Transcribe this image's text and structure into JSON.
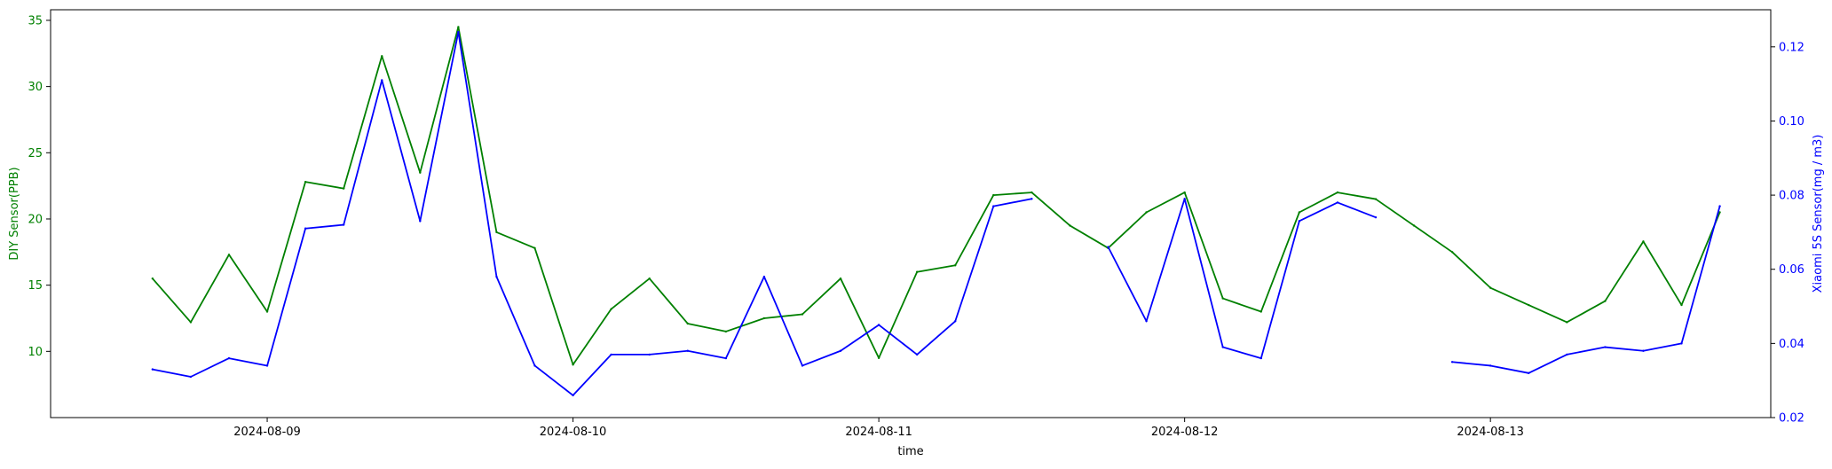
{
  "chart_data": {
    "type": "line",
    "xlabel": "time",
    "y_left_label": "DIY Sensor(PPB)",
    "y_right_label": "Xiaomi 5S Sensor(mg / m3)",
    "x_range": [
      "2024-08-08 07:00",
      "2024-08-13 22:00"
    ],
    "x_ticks": [
      "2024-08-09",
      "2024-08-10",
      "2024-08-11",
      "2024-08-12",
      "2024-08-13"
    ],
    "y_left_range": [
      5.0,
      35.8
    ],
    "y_left_ticks": [
      10,
      15,
      20,
      25,
      30,
      35
    ],
    "y_right_range": [
      0.02,
      0.13
    ],
    "y_right_ticks": [
      0.02,
      0.04,
      0.06,
      0.08,
      0.1,
      0.12
    ],
    "grid": false,
    "colors": {
      "left_axis": "#008000",
      "right_axis": "#0000ff",
      "diy_series": "#008000",
      "xiaomi_series": "#0000ff"
    },
    "series": [
      {
        "axis": "left",
        "x": [
          "2024-08-08 15:00",
          "2024-08-08 18:00",
          "2024-08-08 21:00",
          "2024-08-09 00:00",
          "2024-08-09 03:00",
          "2024-08-09 06:00",
          "2024-08-09 09:00",
          "2024-08-09 12:00",
          "2024-08-09 15:00",
          "2024-08-09 18:00",
          "2024-08-09 21:00",
          "2024-08-10 00:00",
          "2024-08-10 03:00",
          "2024-08-10 06:00",
          "2024-08-10 09:00",
          "2024-08-10 12:00",
          "2024-08-10 15:00",
          "2024-08-10 18:00",
          "2024-08-10 21:00",
          "2024-08-11 00:00",
          "2024-08-11 03:00",
          "2024-08-11 06:00",
          "2024-08-11 09:00",
          "2024-08-11 12:00",
          "2024-08-11 15:00",
          "2024-08-11 18:00",
          "2024-08-11 21:00",
          "2024-08-12 00:00",
          "2024-08-12 03:00",
          "2024-08-12 06:00",
          "2024-08-12 09:00",
          "2024-08-12 12:00",
          "2024-08-12 15:00",
          "2024-08-12 18:00",
          "2024-08-12 21:00",
          "2024-08-13 00:00",
          "2024-08-13 03:00",
          "2024-08-13 06:00",
          "2024-08-13 09:00",
          "2024-08-13 12:00",
          "2024-08-13 15:00",
          "2024-08-13 18:00"
        ],
        "values": [
          15.5,
          12.2,
          17.3,
          13.0,
          22.8,
          22.3,
          32.3,
          23.5,
          34.5,
          19.0,
          17.8,
          9.0,
          13.2,
          15.5,
          12.1,
          11.5,
          12.5,
          12.8,
          15.5,
          9.5,
          16.0,
          16.5,
          21.8,
          22.0,
          19.5,
          17.8,
          20.5,
          22.0,
          14.0,
          13.0,
          20.5,
          22.0,
          21.5,
          19.5,
          17.5,
          14.8,
          13.5,
          12.2,
          13.8,
          18.3,
          13.5,
          20.5
        ]
      },
      {
        "axis": "right",
        "x": [
          "2024-08-08 15:00",
          "2024-08-08 18:00",
          "2024-08-08 21:00",
          "2024-08-09 00:00",
          "2024-08-09 03:00",
          "2024-08-09 06:00",
          "2024-08-09 09:00",
          "2024-08-09 12:00",
          "2024-08-09 15:00",
          "2024-08-09 18:00",
          "2024-08-09 21:00",
          "2024-08-10 00:00",
          "2024-08-10 03:00",
          "2024-08-10 06:00",
          "2024-08-10 09:00",
          "2024-08-10 12:00",
          "2024-08-10 15:00",
          "2024-08-10 18:00",
          "2024-08-10 21:00",
          "2024-08-11 00:00",
          "2024-08-11 03:00",
          "2024-08-11 06:00",
          "2024-08-11 09:00",
          "2024-08-11 12:00",
          "2024-08-11 15:00",
          "2024-08-11 18:00",
          "2024-08-11 21:00",
          "2024-08-12 00:00",
          "2024-08-12 03:00",
          "2024-08-12 06:00",
          "2024-08-12 09:00",
          "2024-08-12 12:00",
          "2024-08-12 15:00",
          "2024-08-12 18:00",
          "2024-08-12 21:00",
          "2024-08-13 00:00",
          "2024-08-13 03:00",
          "2024-08-13 06:00",
          "2024-08-13 09:00",
          "2024-08-13 12:00",
          "2024-08-13 15:00",
          "2024-08-13 18:00"
        ],
        "values": [
          0.033,
          0.031,
          0.036,
          0.034,
          0.071,
          0.072,
          0.111,
          0.073,
          0.124,
          0.058,
          0.034,
          0.026,
          0.037,
          0.037,
          0.038,
          0.036,
          0.058,
          0.034,
          0.038,
          0.045,
          0.037,
          0.046,
          0.077,
          0.079,
          null,
          0.066,
          0.046,
          0.079,
          0.039,
          0.036,
          0.073,
          0.078,
          0.074,
          null,
          0.035,
          0.034,
          0.032,
          0.037,
          0.039,
          0.038,
          0.04,
          0.077
        ]
      }
    ]
  }
}
